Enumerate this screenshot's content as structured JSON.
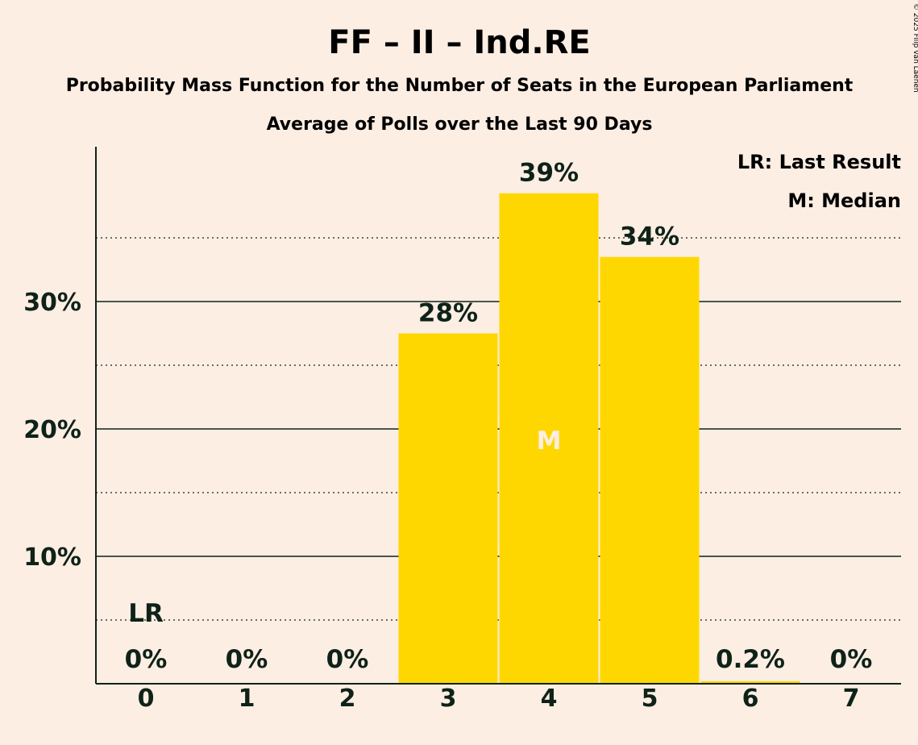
{
  "chart_data": {
    "type": "bar",
    "title": "FF – II – Ind.RE",
    "subtitle": "Probability Mass Function for the Number of Seats in the European Parliament",
    "subtitle2": "Average of Polls over the Last 90 Days",
    "categories": [
      "0",
      "1",
      "2",
      "3",
      "4",
      "5",
      "6",
      "7"
    ],
    "values": [
      0,
      0,
      0,
      27.5,
      38.5,
      33.5,
      0.2,
      0
    ],
    "value_labels": [
      "0%",
      "0%",
      "0%",
      "28%",
      "39%",
      "34%",
      "0.2%",
      "0%"
    ],
    "ylim": [
      0,
      42
    ],
    "y_ticks": [
      {
        "value": 10,
        "label": "10%"
      },
      {
        "value": 20,
        "label": "20%"
      },
      {
        "value": 30,
        "label": "30%"
      }
    ],
    "y_minor_ticks": [
      5,
      15,
      25,
      35
    ],
    "last_result_index": 0,
    "last_result_marker": "LR",
    "median_index": 4,
    "median_marker": "M",
    "legend": [
      "LR: Last Result",
      "M: Median"
    ],
    "legend_position": "top-right",
    "bar_color": "#FFD700",
    "median_text_color": "#FDEEE4",
    "copyright": "© 2025 Filip van Laenen"
  }
}
